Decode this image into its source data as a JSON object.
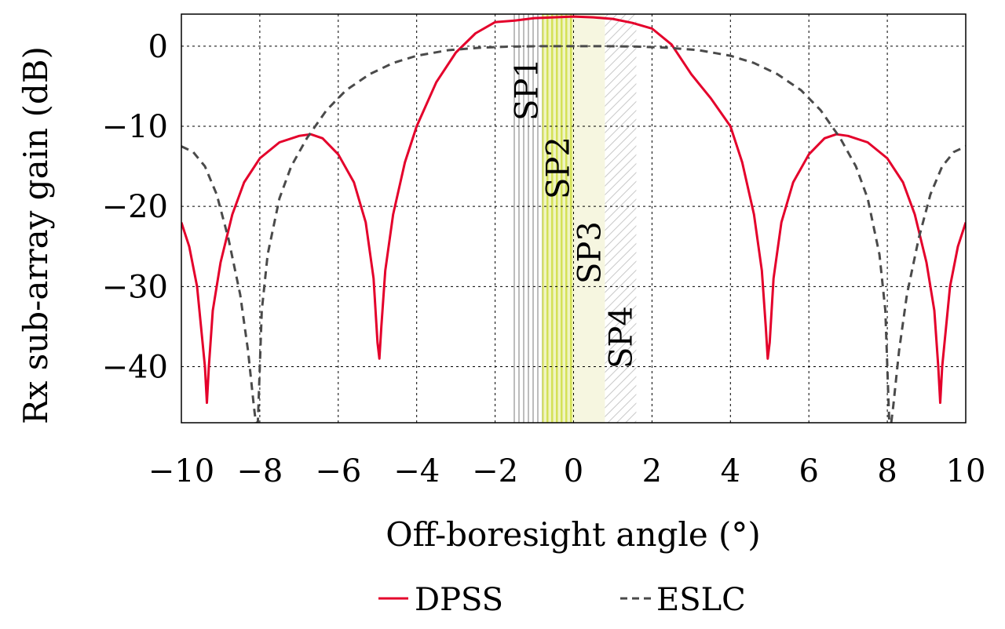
{
  "chart_data": {
    "type": "line",
    "xlabel": "Off-boresight angle (°)",
    "ylabel": "Rx sub-array gain (dB)",
    "xlim": [
      -10,
      10
    ],
    "ylim": [
      -47,
      4
    ],
    "xticks": [
      -10,
      -8,
      -6,
      -4,
      -2,
      0,
      2,
      4,
      6,
      8,
      10
    ],
    "xtick_labels": [
      "−10",
      "−8",
      "−6",
      "−4",
      "−2",
      "0",
      "2",
      "4",
      "6",
      "8",
      "10"
    ],
    "yticks": [
      0,
      -10,
      -20,
      -30,
      -40
    ],
    "ytick_labels": [
      "0",
      "−10",
      "−20",
      "−30",
      "−40"
    ],
    "grid": true,
    "legend_position": "bottom-center",
    "series": [
      {
        "name": "DPSS",
        "color": "#e4002b",
        "dash": "solid",
        "x": [
          -10,
          -9.8,
          -9.6,
          -9.5,
          -9.4,
          -9.35,
          -9.3,
          -9.2,
          -9,
          -8.7,
          -8.4,
          -8,
          -7.5,
          -7,
          -6.7,
          -6.4,
          -6,
          -5.6,
          -5.3,
          -5.1,
          -5.0,
          -4.95,
          -4.9,
          -4.8,
          -4.6,
          -4.3,
          -4,
          -3.5,
          -3,
          -2.5,
          -2,
          -1.5,
          -1,
          -0.5,
          0,
          0.5,
          1,
          1.5,
          2,
          2.5,
          3,
          3.5,
          4,
          4.3,
          4.6,
          4.8,
          4.9,
          4.95,
          5.0,
          5.1,
          5.3,
          5.6,
          6,
          6.4,
          6.7,
          7,
          7.5,
          8,
          8.4,
          8.7,
          9,
          9.2,
          9.3,
          9.35,
          9.4,
          9.5,
          9.6,
          9.8,
          10
        ],
        "y": [
          -22,
          -25,
          -30,
          -35,
          -40,
          -44.5,
          -40,
          -33,
          -27,
          -21,
          -17,
          -14,
          -12,
          -11.2,
          -11,
          -11.5,
          -13.5,
          -17,
          -22,
          -29,
          -37,
          -39,
          -35,
          -28,
          -21,
          -14.5,
          -10,
          -4.5,
          -0.8,
          1.6,
          3.0,
          3.2,
          3.5,
          3.6,
          3.7,
          3.6,
          3.4,
          2.9,
          2.2,
          0.2,
          -3.5,
          -6.5,
          -10,
          -14.5,
          -21,
          -28,
          -35,
          -39,
          -37,
          -29,
          -22,
          -17,
          -13.5,
          -11.5,
          -11,
          -11.2,
          -12,
          -14,
          -17,
          -21,
          -27,
          -33,
          -40,
          -44.5,
          -40,
          -35,
          -30,
          -25,
          -22
        ]
      },
      {
        "name": "ESLC",
        "color": "#4a4a4a",
        "dash": "dashed",
        "x": [
          -10,
          -9.7,
          -9.4,
          -9.1,
          -8.8,
          -8.5,
          -8.3,
          -8.15,
          -8.1,
          -8.05,
          -7.95,
          -7.8,
          -7.5,
          -7.2,
          -6.8,
          -6.3,
          -5.8,
          -5.2,
          -4.6,
          -4,
          -3.2,
          -2.4,
          -1.6,
          -0.8,
          0,
          0.8,
          1.6,
          2.4,
          3.2,
          4,
          4.6,
          5.2,
          5.8,
          6.3,
          6.8,
          7.2,
          7.5,
          7.8,
          7.95,
          8.05,
          8.1,
          8.15,
          8.3,
          8.5,
          8.8,
          9.1,
          9.4,
          9.7,
          10
        ],
        "y": [
          -12.5,
          -13.2,
          -15,
          -18.5,
          -24,
          -31,
          -38,
          -45,
          -47,
          -47,
          -33,
          -26,
          -19,
          -15,
          -11.5,
          -8,
          -5.5,
          -3.5,
          -2.1,
          -1.2,
          -0.5,
          -0.2,
          -0.05,
          0,
          0,
          0,
          -0.05,
          -0.2,
          -0.5,
          -1.2,
          -2.1,
          -3.5,
          -5.5,
          -8,
          -11.5,
          -15,
          -19,
          -26,
          -33,
          -47,
          -47,
          -45,
          -38,
          -31,
          -24,
          -18.5,
          -15,
          -13.2,
          -12.5
        ]
      }
    ],
    "regions": [
      {
        "label": "SP1",
        "x_start": -1.6,
        "x_end": -0.8,
        "fill": "#bdbdbd",
        "pattern": "vertical-lines"
      },
      {
        "label": "SP2",
        "x_start": -0.8,
        "x_end": 0.0,
        "fill": "#d4e157",
        "pattern": "vertical-lines"
      },
      {
        "label": "SP3",
        "x_start": 0.0,
        "x_end": 0.8,
        "fill": "#f6f6e0",
        "pattern": "none"
      },
      {
        "label": "SP4",
        "x_start": 0.8,
        "x_end": 1.6,
        "fill": "#c8c8c8",
        "pattern": "diagonal-lines"
      }
    ]
  }
}
